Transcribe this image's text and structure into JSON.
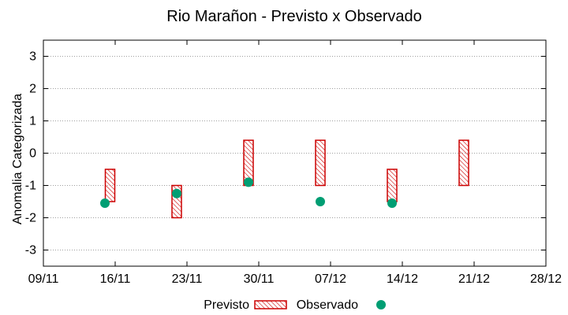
{
  "chart_data": {
    "type": "range_bar_scatter",
    "title": "Rio Marañon - Previsto x Observado",
    "xlabel": "",
    "ylabel": "Anomalia Categorizada",
    "ylim": [
      -3.5,
      3.5
    ],
    "yticks": [
      -3,
      -2,
      -1,
      0,
      1,
      2,
      3
    ],
    "ytick_labels": [
      "-3",
      "-2",
      "-1",
      "0",
      "1",
      "2",
      "3"
    ],
    "grid": true,
    "x_ticks": [
      "09/11",
      "16/11",
      "23/11",
      "30/11",
      "07/12",
      "14/12",
      "21/12",
      "28/12"
    ],
    "x_range_days": [
      0,
      49
    ],
    "legend_position": "bottom-center",
    "series": [
      {
        "name": "Previsto",
        "style": "hatched-bar",
        "color": "#cc0000",
        "points": [
          {
            "x_day": 6.5,
            "low": -1.5,
            "high": -0.5
          },
          {
            "x_day": 13.0,
            "low": -2.0,
            "high": -1.0
          },
          {
            "x_day": 20.0,
            "low": -1.0,
            "high": 0.4
          },
          {
            "x_day": 27.0,
            "low": -1.0,
            "high": 0.4
          },
          {
            "x_day": 34.0,
            "low": -1.5,
            "high": -0.5
          },
          {
            "x_day": 41.0,
            "low": -1.0,
            "high": 0.4
          }
        ]
      },
      {
        "name": "Observado",
        "style": "point",
        "color": "#009e73",
        "points": [
          {
            "x_day": 6.0,
            "y": -1.55
          },
          {
            "x_day": 13.0,
            "y": -1.25
          },
          {
            "x_day": 20.0,
            "y": -0.9
          },
          {
            "x_day": 27.0,
            "y": -1.5
          },
          {
            "x_day": 34.0,
            "y": -1.55
          }
        ]
      }
    ]
  }
}
